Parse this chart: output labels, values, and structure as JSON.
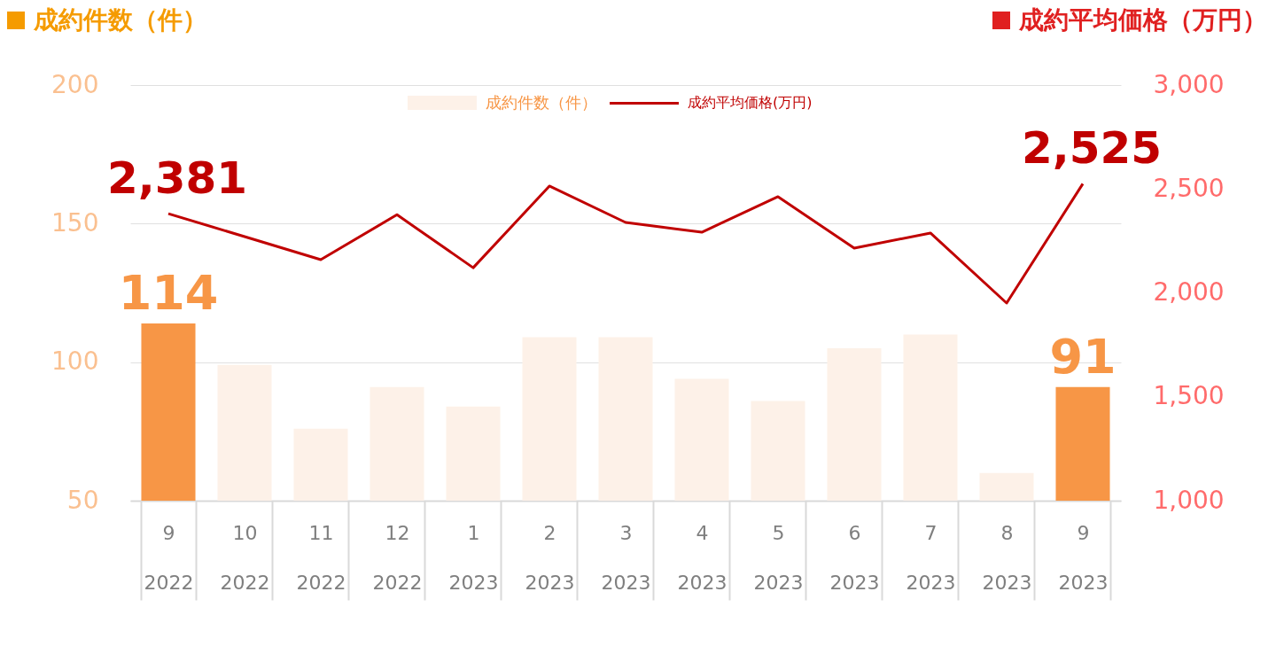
{
  "chart_data": {
    "type": "bar",
    "ylabel": "成約件数（件）",
    "y2label": "成約平均価格（万円）",
    "categories": [
      "9\n2022",
      "10\n2022",
      "11\n2022",
      "12\n2022",
      "1\n2023",
      "2\n2023",
      "3\n2023",
      "4\n2023",
      "5\n2023",
      "6\n2023",
      "7\n2023",
      "8\n2023",
      "9\n2023"
    ],
    "ylim": [
      50,
      200
    ],
    "yticks": [
      50,
      100,
      150,
      200
    ],
    "y2lim": [
      1000,
      3000
    ],
    "y2ticks": [
      {
        "value": 1000,
        "label": "1,000"
      },
      {
        "value": 1500,
        "label": "1,500"
      },
      {
        "value": 2000,
        "label": "2,000"
      },
      {
        "value": 2500,
        "label": "2,500"
      },
      {
        "value": 3000,
        "label": "3,000"
      }
    ],
    "grid": "y",
    "legend": "top",
    "series": [
      {
        "name": "成約件数（件）",
        "colors": [
          "#f79646",
          "#fdf1e8",
          "#fdf1e8",
          "#fdf1e8",
          "#fdf1e8",
          "#fdf1e8",
          "#fdf1e8",
          "#fdf1e8",
          "#fdf1e8",
          "#fdf1e8",
          "#fdf1e8",
          "#fdf1e8",
          "#f79646"
        ],
        "values": [
          114,
          99,
          76,
          91,
          84,
          109,
          109,
          94,
          86,
          105,
          110,
          60,
          91
        ],
        "value_labels": [
          "114",
          null,
          null,
          null,
          null,
          null,
          null,
          null,
          null,
          null,
          null,
          null,
          "91"
        ]
      },
      {
        "name": "成約平均価格(万円)",
        "type": "line",
        "axis": "y2",
        "color": "#c00000",
        "values": [
          2381,
          2271,
          2160,
          2376,
          2121,
          2514,
          2339,
          2292,
          2463,
          2215,
          2288,
          1951,
          2525
        ],
        "value_labels": [
          "2,381",
          null,
          null,
          null,
          null,
          null,
          null,
          null,
          null,
          null,
          null,
          null,
          "2,525"
        ]
      }
    ]
  }
}
